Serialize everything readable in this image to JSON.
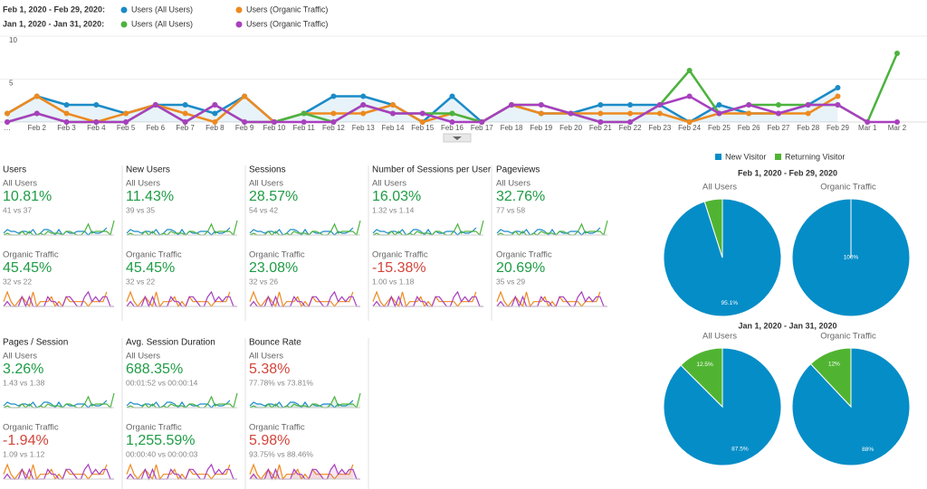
{
  "chart_data": [
    {
      "type": "line",
      "periods": [
        "Feb 1, 2020 - Feb 29, 2020:",
        "Jan 1, 2020 - Jan 31, 2020:"
      ],
      "categories": [
        "…",
        "Feb 2",
        "Feb 3",
        "Feb 4",
        "Feb 5",
        "Feb 6",
        "Feb 7",
        "Feb 8",
        "Feb 9",
        "Feb 10",
        "Feb 11",
        "Feb 12",
        "Feb 13",
        "Feb 14",
        "Feb 15",
        "Feb 16",
        "Feb 17",
        "Feb 18",
        "Feb 19",
        "Feb 20",
        "Feb 21",
        "Feb 22",
        "Feb 23",
        "Feb 24",
        "Feb 25",
        "Feb 26",
        "Feb 27",
        "Feb 28",
        "Feb 29",
        "Mar 1",
        "Mar 2"
      ],
      "ylim": [
        0,
        10
      ],
      "yticks": [
        5,
        10
      ],
      "grid": true,
      "series": [
        {
          "name": "Users (All Users)",
          "color": "#1b8bc6",
          "area": true,
          "values": [
            1,
            3,
            2,
            2,
            1,
            2,
            2,
            1,
            3,
            0,
            1,
            3,
            3,
            2,
            0,
            3,
            0,
            2,
            1,
            1,
            2,
            2,
            2,
            0,
            2,
            1,
            1,
            2,
            4,
            null,
            null
          ]
        },
        {
          "name": "Users (Organic Traffic)",
          "color": "#ed8a1f",
          "values": [
            1,
            3,
            1,
            0,
            1,
            2,
            1,
            0,
            3,
            0,
            1,
            1,
            1,
            2,
            0,
            1,
            0,
            2,
            1,
            1,
            1,
            1,
            1,
            0,
            1,
            1,
            1,
            1,
            3,
            null,
            null
          ]
        },
        {
          "name": "Users (All Users)",
          "color": "#4cb33e",
          "values": [
            0,
            1,
            0,
            0,
            0,
            2,
            0,
            2,
            0,
            0,
            1,
            0,
            2,
            1,
            1,
            1,
            0,
            2,
            2,
            1,
            0,
            0,
            2,
            6,
            1,
            2,
            2,
            2,
            2,
            0,
            8
          ]
        },
        {
          "name": "Users (Organic Traffic)",
          "color": "#a93fbf",
          "values": [
            0,
            1,
            0,
            0,
            0,
            2,
            0,
            2,
            0,
            0,
            0,
            0,
            2,
            1,
            1,
            0,
            0,
            2,
            2,
            1,
            0,
            0,
            2,
            3,
            1,
            2,
            1,
            2,
            2,
            0,
            0
          ]
        }
      ]
    },
    {
      "type": "pie",
      "categories": [
        "New Visitor",
        "Returning Visitor"
      ],
      "colors": [
        "#058dc7",
        "#50b432"
      ],
      "groups": [
        {
          "title": "Feb 1, 2020 - Feb 29, 2020",
          "pies": [
            {
              "title": "All Users",
              "values": [
                95.1,
                4.9
              ],
              "value_labels": [
                "95.1%",
                null
              ]
            },
            {
              "title": "Organic Traffic",
              "values": [
                100,
                0
              ],
              "value_labels": [
                "100%",
                null
              ]
            }
          ]
        },
        {
          "title": "Jan 1, 2020 - Jan 31, 2020",
          "pies": [
            {
              "title": "All Users",
              "values": [
                87.5,
                12.5
              ],
              "value_labels": [
                "87.5%",
                "12.5%"
              ]
            },
            {
              "title": "Organic Traffic",
              "values": [
                88,
                12
              ],
              "value_labels": [
                "88%",
                "12%"
              ]
            }
          ]
        }
      ]
    }
  ],
  "scorecards": [
    {
      "title": "Users",
      "segments": [
        {
          "label": "All Users",
          "value": "10.81%",
          "compare": "41 vs 37",
          "color": "#1e9c45"
        },
        {
          "label": "Organic Traffic",
          "value": "45.45%",
          "compare": "32 vs 22",
          "color": "#1e9c45"
        }
      ]
    },
    {
      "title": "New Users",
      "segments": [
        {
          "label": "All Users",
          "value": "11.43%",
          "compare": "39 vs 35",
          "color": "#1e9c45"
        },
        {
          "label": "Organic Traffic",
          "value": "45.45%",
          "compare": "32 vs 22",
          "color": "#1e9c45"
        }
      ]
    },
    {
      "title": "Sessions",
      "segments": [
        {
          "label": "All Users",
          "value": "28.57%",
          "compare": "54 vs 42",
          "color": "#1e9c45"
        },
        {
          "label": "Organic Traffic",
          "value": "23.08%",
          "compare": "32 vs 26",
          "color": "#1e9c45"
        }
      ]
    },
    {
      "title": "Number of Sessions per User",
      "segments": [
        {
          "label": "All Users",
          "value": "16.03%",
          "compare": "1.32 vs 1.14",
          "color": "#1e9c45"
        },
        {
          "label": "Organic Traffic",
          "value": "-15.38%",
          "compare": "1.00 vs 1.18",
          "color": "#d2453a"
        }
      ]
    },
    {
      "title": "Pageviews",
      "segments": [
        {
          "label": "All Users",
          "value": "32.76%",
          "compare": "77 vs 58",
          "color": "#1e9c45"
        },
        {
          "label": "Organic Traffic",
          "value": "20.69%",
          "compare": "35 vs 29",
          "color": "#1e9c45"
        }
      ]
    },
    {
      "title": "Pages / Session",
      "segments": [
        {
          "label": "All Users",
          "value": "3.26%",
          "compare": "1.43 vs 1.38",
          "color": "#1e9c45"
        },
        {
          "label": "Organic Traffic",
          "value": "-1.94%",
          "compare": "1.09 vs 1.12",
          "color": "#d2453a"
        }
      ]
    },
    {
      "title": "Avg. Session Duration",
      "segments": [
        {
          "label": "All Users",
          "value": "688.35%",
          "compare": "00:01:52 vs 00:00:14",
          "color": "#1e9c45"
        },
        {
          "label": "Organic Traffic",
          "value": "1,255.59%",
          "compare": "00:00:40 vs 00:00:03",
          "color": "#1e9c45"
        }
      ]
    },
    {
      "title": "Bounce Rate",
      "segments": [
        {
          "label": "All Users",
          "value": "5.38%",
          "compare": "77.78% vs 73.81%",
          "color": "#d2453a"
        },
        {
          "label": "Organic Traffic",
          "value": "5.98%",
          "compare": "93.75% vs 88.46%",
          "color": "#d2453a"
        }
      ]
    }
  ]
}
